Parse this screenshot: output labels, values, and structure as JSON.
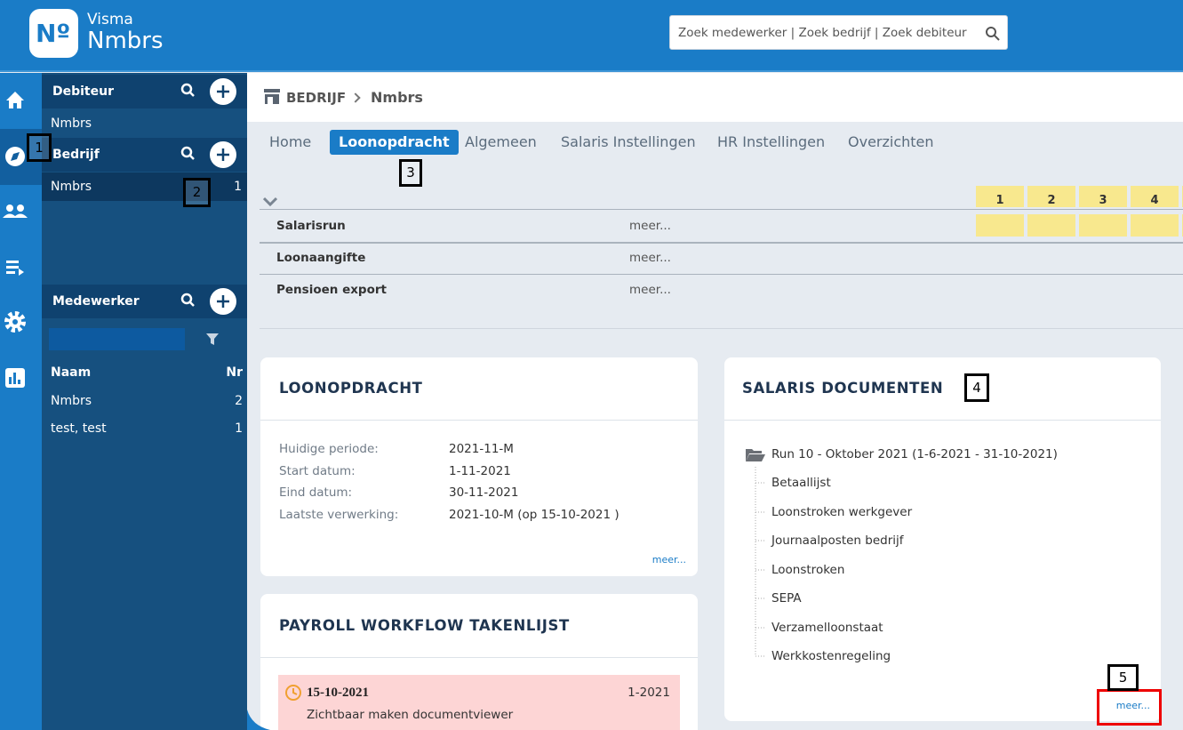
{
  "header": {
    "logo": "Nº",
    "brand_top": "Visma",
    "brand": "Nmbrs",
    "search_placeholder": "Zoek medewerker | Zoek bedrijf | Zoek debiteur"
  },
  "sidebar": {
    "debiteur": {
      "title": "Debiteur",
      "items": [
        "Nmbrs"
      ]
    },
    "bedrijf": {
      "title": "Bedrijf",
      "items": [
        {
          "name": "Nmbrs",
          "count": 1
        }
      ]
    },
    "medewerker": {
      "title": "Medewerker",
      "col_name": "Naam",
      "col_nr": "Nr",
      "rows": [
        {
          "name": "Nmbrs",
          "nr": 2
        },
        {
          "name": "test, test",
          "nr": 1
        }
      ]
    }
  },
  "breadcrumb": {
    "section": "BEDRIJF",
    "current": "Nmbrs"
  },
  "tabs": [
    "Home",
    "Loonopdracht",
    "Algemeen",
    "Salaris Instellingen",
    "HR Instellingen",
    "Overzichten"
  ],
  "active_tab": 1,
  "schedule": {
    "columns": [
      1,
      2,
      3,
      4
    ],
    "rows": [
      {
        "name": "Salarisrun",
        "link": "meer..."
      },
      {
        "name": "Loonaangifte",
        "link": "meer..."
      },
      {
        "name": "Pensioen export",
        "link": "meer..."
      }
    ]
  },
  "loonopdracht": {
    "title": "LOONOPDRACHT",
    "fields": [
      {
        "label": "Huidige periode:",
        "value": "2021-11-M"
      },
      {
        "label": "Start datum:",
        "value": "1-11-2021"
      },
      {
        "label": "Eind datum:",
        "value": "30-11-2021"
      },
      {
        "label": "Laatste verwerking:",
        "value": "2021-10-M (op 15-10-2021 )"
      }
    ],
    "more": "meer..."
  },
  "workflow": {
    "title": "PAYROLL WORKFLOW TAKENLIJST",
    "tasks": [
      {
        "date": "15-10-2021",
        "period": "1-2021",
        "text": "Zichtbaar maken documentviewer"
      }
    ]
  },
  "documents": {
    "title": "SALARIS DOCUMENTEN",
    "folder": "Run 10 - Oktober 2021 (1-6-2021 - 31-10-2021)",
    "items": [
      "Betaallijst",
      "Loonstroken werkgever",
      "Journaalposten bedrijf",
      "Loonstroken",
      "SEPA",
      "Verzamelloonstaat",
      "Werkkostenregeling"
    ],
    "more": "meer..."
  },
  "annotations": [
    1,
    2,
    3,
    4,
    5
  ]
}
